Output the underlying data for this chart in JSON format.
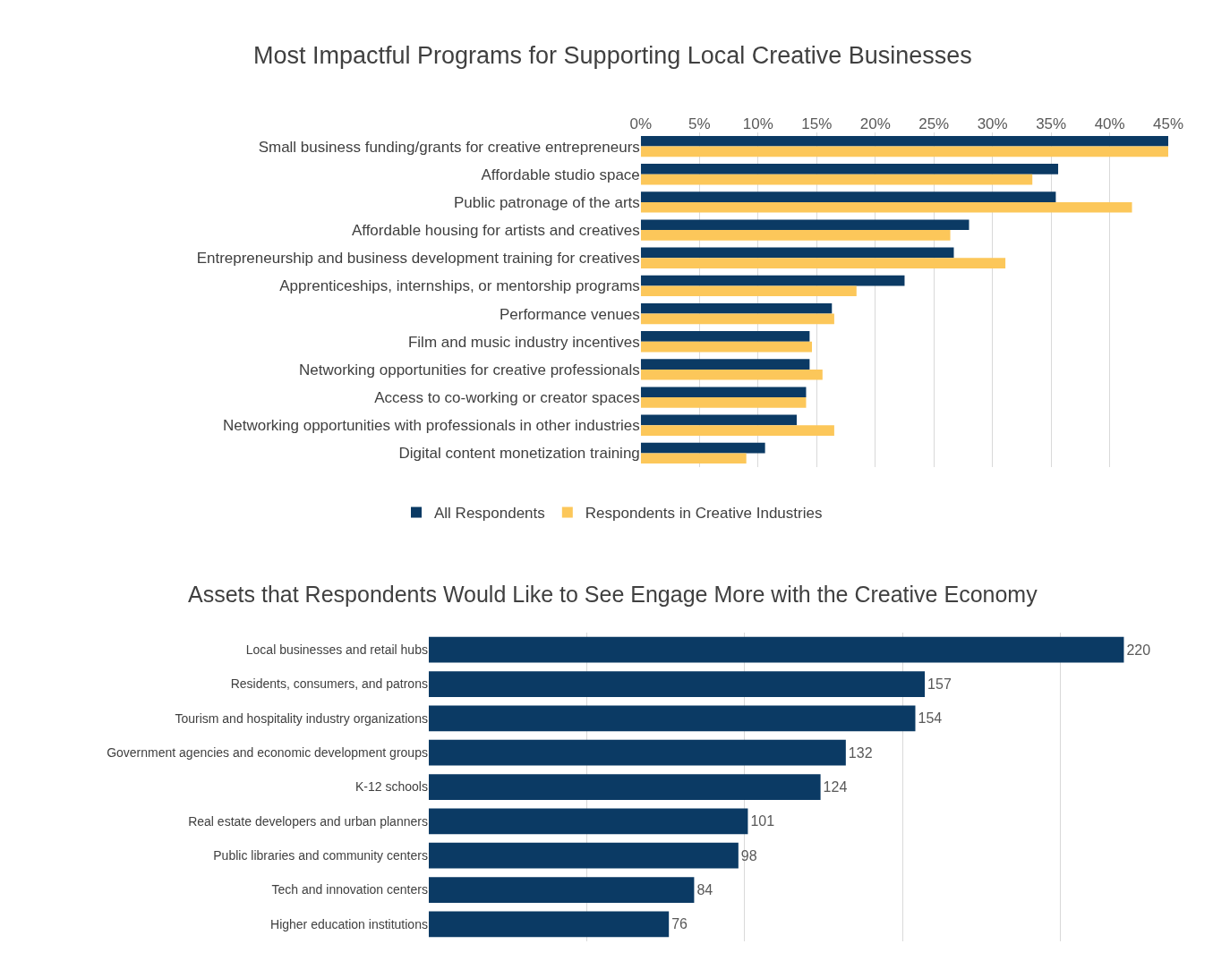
{
  "chart_data": [
    {
      "type": "bar",
      "orientation": "horizontal",
      "title": "Most Impactful Programs for Supporting Local Creative Businesses",
      "categories": [
        "Small business funding/grants for creative entrepreneurs",
        "Affordable studio space",
        "Public patronage of the arts",
        "Affordable housing for artists and creatives",
        "Entrepreneurship and business development training for creatives",
        "Apprenticeships, internships, or mentorship programs",
        "Performance venues",
        "Film and music industry incentives",
        "Networking opportunities for creative professionals",
        "Access to co-working or creator spaces",
        "Networking opportunities with professionals in other industries",
        "Digital content monetization training"
      ],
      "series": [
        {
          "name": "All Respondents",
          "color": "#0b3a64",
          "values": [
            45,
            35.6,
            35.4,
            28.0,
            26.7,
            22.5,
            16.3,
            14.4,
            14.4,
            14.1,
            13.3,
            10.6
          ]
        },
        {
          "name": "Respondents in Creative Industries",
          "color": "#fcc75a",
          "values": [
            45,
            33.4,
            41.9,
            26.4,
            31.1,
            18.4,
            16.5,
            14.6,
            15.5,
            14.1,
            16.5,
            9.0
          ]
        }
      ],
      "xlim": [
        0,
        45
      ],
      "xticks": [
        {
          "value": 0,
          "label": "0%"
        },
        {
          "value": 5,
          "label": "5%"
        },
        {
          "value": 10,
          "label": "10%"
        },
        {
          "value": 15,
          "label": "15%"
        },
        {
          "value": 20,
          "label": "20%"
        },
        {
          "value": 25,
          "label": "25%"
        },
        {
          "value": 30,
          "label": "30%"
        },
        {
          "value": 35,
          "label": "35%"
        },
        {
          "value": 40,
          "label": "40%"
        },
        {
          "value": 45,
          "label": "45%"
        }
      ],
      "grid": "x",
      "legend": "bottom"
    },
    {
      "type": "bar",
      "orientation": "horizontal",
      "title": "Assets that Respondents Would Like to See Engage More with the Creative Economy",
      "categories": [
        "Local businesses and retail hubs",
        "Residents, consumers, and patrons",
        "Tourism and hospitality industry organizations",
        "Government agencies and economic development groups",
        "K-12 schools",
        "Real estate developers and urban planners",
        "Public libraries and community centers",
        "Tech and innovation centers",
        "Higher education institutions"
      ],
      "series": [
        {
          "color": "#0b3a64",
          "values": [
            220,
            157,
            154,
            132,
            124,
            101,
            98,
            84,
            76
          ]
        }
      ],
      "grid": "x",
      "data_labels": true,
      "tick_labels": "y"
    }
  ]
}
